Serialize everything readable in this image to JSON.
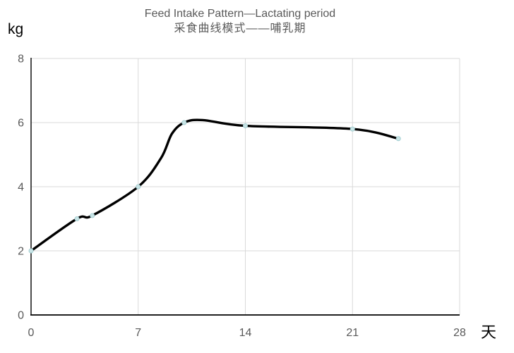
{
  "header": {
    "title": "Feed Intake Pattern—Lactating period",
    "subtitle": "采食曲线模式——哺乳期"
  },
  "chart_data": {
    "type": "line",
    "title": "Feed Intake Pattern—Lactating period",
    "subtitle": "采食曲线模式——哺乳期",
    "y_unit_label": "kg",
    "x_unit_label": "天",
    "xlabel": "天 (days)",
    "ylabel": "kg",
    "points": [
      {
        "x": 0,
        "y": 2.0
      },
      {
        "x": 3,
        "y": 3.0
      },
      {
        "x": 4,
        "y": 3.1
      },
      {
        "x": 7,
        "y": 4.0
      },
      {
        "x": 10,
        "y": 6.0
      },
      {
        "x": 14,
        "y": 5.9
      },
      {
        "x": 21,
        "y": 5.8
      },
      {
        "x": 24,
        "y": 5.5
      }
    ],
    "curve_shape_points_estimated": [
      {
        "x": 8.5,
        "y": 4.9
      },
      {
        "x": 9.2,
        "y": 5.65
      },
      {
        "x": 11.2,
        "y": 6.08
      }
    ],
    "x_ticks": [
      0,
      7,
      14,
      21,
      28
    ],
    "y_ticks": [
      0,
      2,
      4,
      6,
      8
    ],
    "xlim": [
      0,
      28
    ],
    "ylim": [
      0,
      8
    ],
    "grid": true,
    "legend": false,
    "colors": {
      "line": "#000000",
      "marker_fill": "#c9e4e6",
      "marker_stroke": "#a5d0d3",
      "grid": "#d9d9d9",
      "axis": "#000000",
      "tick_label": "#595959",
      "title": "#595959"
    }
  }
}
